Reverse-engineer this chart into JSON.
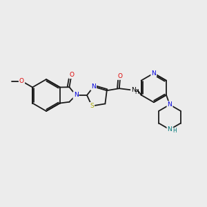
{
  "background_color": "#ececec",
  "fig_size": [
    3.0,
    3.0
  ],
  "dpi": 100,
  "bond_color": "#1a1a1a",
  "lw": 1.3,
  "atom_colors": {
    "N": "#0000dd",
    "O": "#dd0000",
    "S": "#aaaa00",
    "N_teal": "#007777"
  },
  "fs": 6.5
}
